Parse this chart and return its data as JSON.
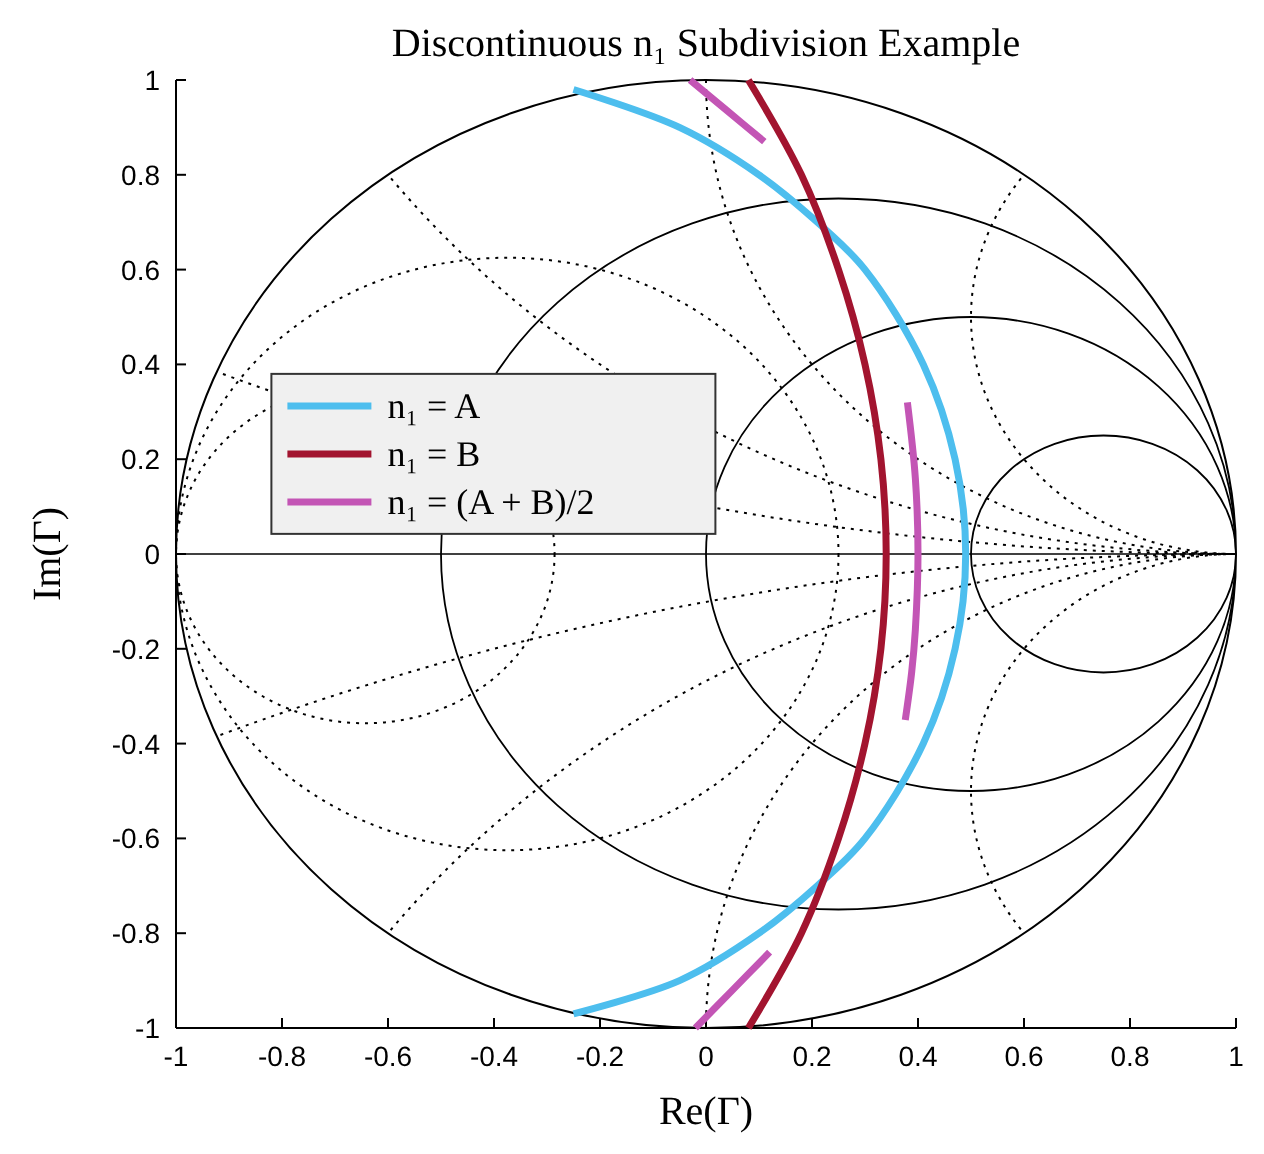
{
  "chart_data": {
    "type": "line",
    "title": "Discontinuous n₁ Subdivision Example",
    "xlabel": "Re(Γ)",
    "ylabel": "Im(Γ)",
    "xlim": [
      -1,
      1
    ],
    "ylim": [
      -1,
      1
    ],
    "xticks": [
      -1,
      -0.8,
      -0.6,
      -0.4,
      -0.2,
      0,
      0.2,
      0.4,
      0.6,
      0.8,
      1
    ],
    "yticks": [
      -1,
      -0.8,
      -0.6,
      -0.4,
      -0.2,
      0,
      0.2,
      0.4,
      0.6,
      0.8,
      1
    ],
    "legend": "left",
    "series": [
      {
        "name": "n₁ = A",
        "color": "#4dbeee",
        "x": [
          -0.25,
          -0.05,
          0.1,
          0.21,
          0.3,
          0.41,
          0.47,
          0.49,
          0.47,
          0.41,
          0.3,
          0.21,
          0.1,
          -0.05,
          -0.25
        ],
        "values": [
          0.98,
          0.9,
          0.8,
          0.7,
          0.6,
          0.4,
          0.2,
          0,
          -0.2,
          -0.4,
          -0.6,
          -0.7,
          -0.8,
          -0.9,
          -0.97
        ]
      },
      {
        "name": "n₁ = B",
        "color": "#a2142f",
        "x": [
          0.08,
          0.18,
          0.25,
          0.3,
          0.33,
          0.34,
          0.33,
          0.3,
          0.25,
          0.18,
          0.08
        ],
        "values": [
          1,
          0.8,
          0.6,
          0.4,
          0.2,
          0,
          -0.2,
          -0.4,
          -0.6,
          -0.8,
          -1
        ]
      },
      {
        "name": "n₁ = (A + B)/2",
        "color": "#c355b5",
        "x": [
          -0.03,
          0.04,
          0.11,
          0.2,
          0.38,
          0.395,
          0.4,
          0.395,
          0.388,
          0.376,
          0.2,
          -0.02,
          0.05,
          0.12
        ],
        "values": [
          1,
          0.935,
          0.87,
          null,
          0.32,
          0.16,
          0,
          -0.16,
          -0.25,
          -0.35,
          null,
          -1,
          -0.92,
          -0.84
        ]
      }
    ]
  }
}
